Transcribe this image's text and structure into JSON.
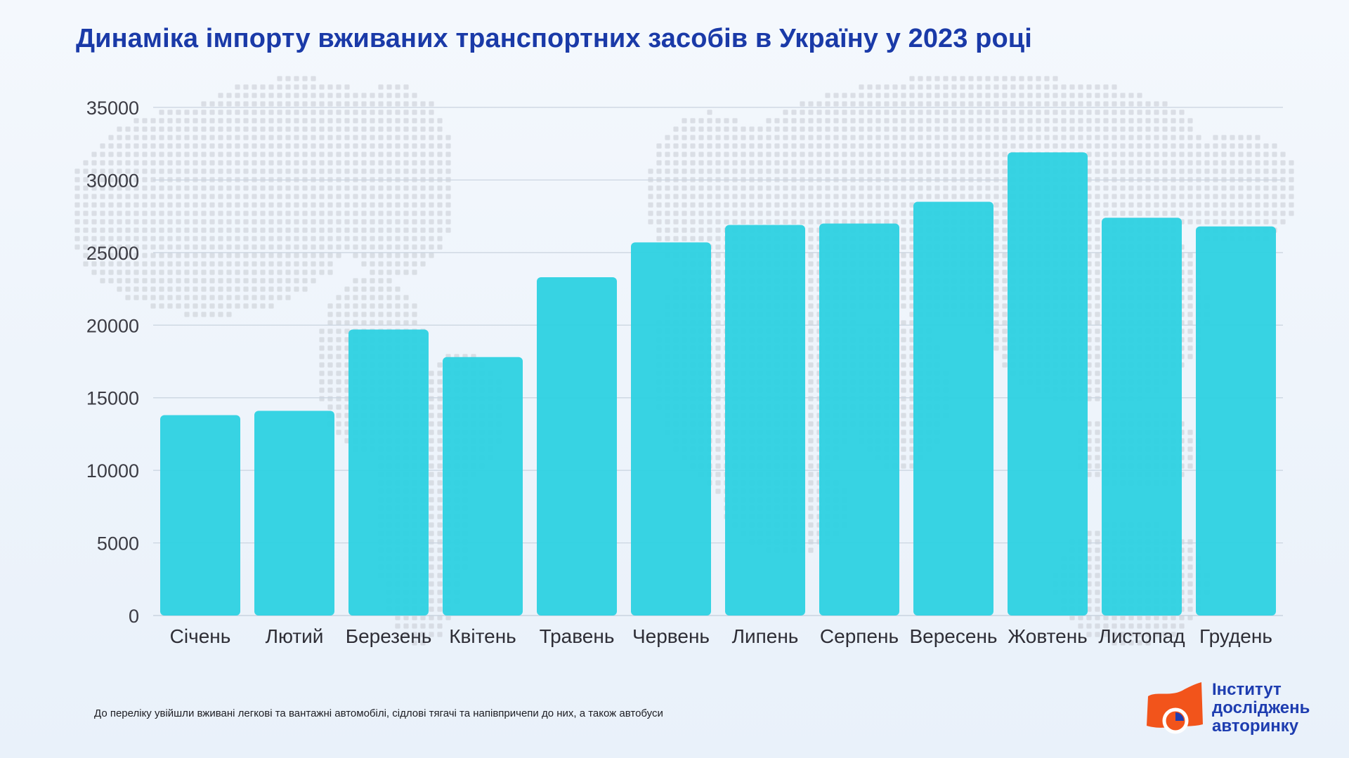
{
  "title": "Динаміка імпорту вживаних транспортних засобів в Україну у 2023 році",
  "footnote": "До переліку увійшли вживані легкові та вантажні автомобілі, сідлові тягачі та напівпричепи до них, а також автобуси",
  "brand": {
    "line1": "Інститут",
    "line2": "досліджень",
    "line3": "авторинку",
    "colors": {
      "mark": "#f2541b",
      "text": "#1e3db0"
    }
  },
  "chart_data": {
    "type": "bar",
    "title": "Динаміка імпорту вживаних транспортних засобів в Україну у 2023 році",
    "xlabel": "",
    "ylabel": "",
    "categories": [
      "Січень",
      "Лютий",
      "Березень",
      "Квітень",
      "Травень",
      "Червень",
      "Липень",
      "Серпень",
      "Вересень",
      "Жовтень",
      "Листопад",
      "Грудень"
    ],
    "values": [
      13800,
      14100,
      19700,
      17800,
      23300,
      25700,
      26900,
      27000,
      28500,
      31900,
      27400,
      26800
    ],
    "ylim": [
      0,
      35000
    ],
    "yticks": [
      "0",
      "5000",
      "10000",
      "15000",
      "20000",
      "25000",
      "30000",
      "35000"
    ],
    "grid": true,
    "legend": "none",
    "colors": {
      "bar": "#2fd1e2",
      "grid": "#c9d3df",
      "title": "#1a3aa8"
    }
  }
}
